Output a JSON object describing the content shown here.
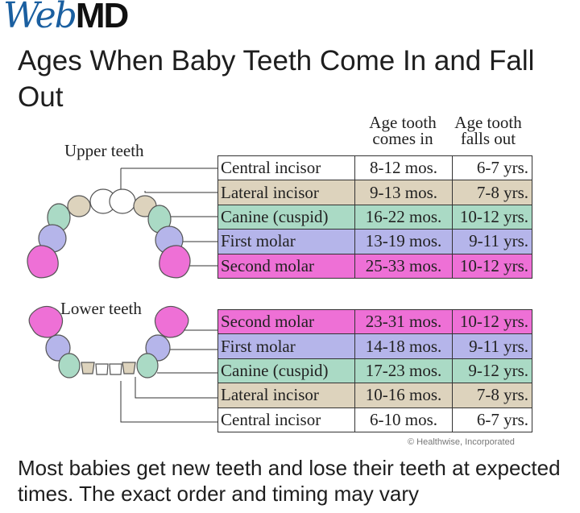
{
  "header": {
    "logo": {
      "part1": "Web",
      "part2": "MD"
    },
    "title": "Ages When Baby Teeth Come In and Fall Out"
  },
  "table_headers": {
    "comes_in": {
      "line1": "Age tooth",
      "line2": "comes in"
    },
    "falls_out": {
      "line1": "Age tooth",
      "line2": "falls out"
    }
  },
  "upper": {
    "label": "Upper teeth",
    "rows": [
      {
        "name": "Central incisor",
        "in": "8-12 mos.",
        "out": "6-7 yrs.",
        "color": "#ffffff"
      },
      {
        "name": "Lateral incisor",
        "in": "9-13 mos.",
        "out": "7-8 yrs.",
        "color": "#ddd3bd"
      },
      {
        "name": "Canine (cuspid)",
        "in": "16-22 mos.",
        "out": "10-12 yrs.",
        "color": "#aadac5"
      },
      {
        "name": "First molar",
        "in": "13-19 mos.",
        "out": "9-11 yrs.",
        "color": "#b5b5ea"
      },
      {
        "name": "Second molar",
        "in": "25-33 mos.",
        "out": "10-12 yrs.",
        "color": "#ee70d6"
      }
    ]
  },
  "lower": {
    "label": "Lower teeth",
    "rows": [
      {
        "name": "Second molar",
        "in": "23-31 mos.",
        "out": "10-12 yrs.",
        "color": "#ee70d6"
      },
      {
        "name": "First molar",
        "in": "14-18 mos.",
        "out": "9-11 yrs.",
        "color": "#b5b5ea"
      },
      {
        "name": "Canine (cuspid)",
        "in": "17-23 mos.",
        "out": "9-12 yrs.",
        "color": "#aadac5"
      },
      {
        "name": "Lateral incisor",
        "in": "10-16 mos.",
        "out": "7-8 yrs.",
        "color": "#ddd3bd"
      },
      {
        "name": "Central incisor",
        "in": "6-10 mos.",
        "out": "6-7 yrs.",
        "color": "#ffffff"
      }
    ]
  },
  "credit": "© Healthwise, Incorporated",
  "body_text": "Most babies get new teeth and lose their teeth at expected times. The exact order and timing may vary"
}
